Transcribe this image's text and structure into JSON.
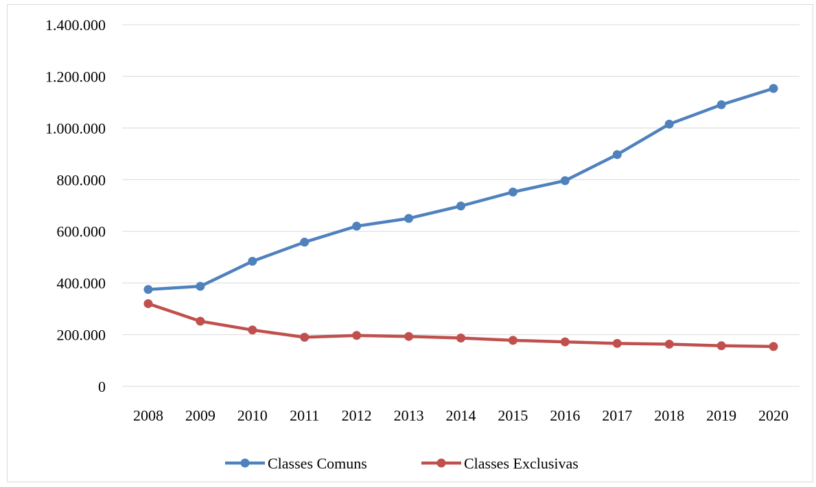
{
  "chart_data": {
    "type": "line",
    "title": "",
    "xlabel": "",
    "ylabel": "",
    "categories": [
      "2008",
      "2009",
      "2010",
      "2011",
      "2012",
      "2013",
      "2014",
      "2015",
      "2016",
      "2017",
      "2018",
      "2019",
      "2020"
    ],
    "ylim": [
      0,
      1400000
    ],
    "y_ticks": [
      0,
      200000,
      400000,
      600000,
      800000,
      1000000,
      1200000,
      1400000
    ],
    "y_tick_labels": [
      "0",
      "200.000",
      "400.000",
      "600.000",
      "800.000",
      "1.000.000",
      "1.200.000",
      "1.400.000"
    ],
    "grid": true,
    "legend_position": "bottom",
    "series": [
      {
        "name": "Classes Comuns",
        "color": "#4f81bd",
        "values": [
          375000,
          387000,
          484000,
          558000,
          620000,
          650000,
          698000,
          752000,
          796000,
          897000,
          1015000,
          1090000,
          1153000
        ]
      },
      {
        "name": "Classes Exclusivas",
        "color": "#c0504d",
        "values": [
          320000,
          252000,
          218000,
          190000,
          197000,
          193000,
          187000,
          178000,
          172000,
          166000,
          163000,
          157000,
          154000
        ]
      }
    ]
  }
}
